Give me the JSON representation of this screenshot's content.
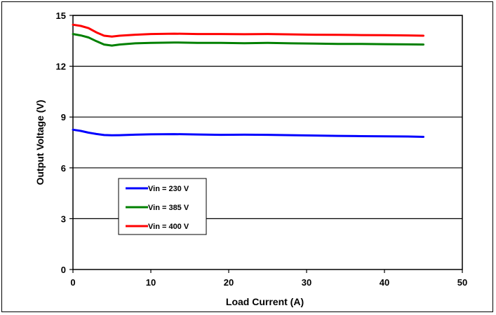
{
  "chart_data": {
    "type": "line",
    "title": "",
    "xlabel": "Load Current (A)",
    "ylabel": "Output Voltage (V)",
    "xlim": [
      0,
      50
    ],
    "ylim": [
      0,
      15
    ],
    "xticks": [
      0,
      10,
      20,
      30,
      40,
      50
    ],
    "yticks": [
      0,
      3,
      6,
      9,
      12,
      15
    ],
    "grid": "horizontal",
    "legend_position": "lower-left",
    "series": [
      {
        "name": "Vin = 230 V",
        "color": "#0000ff",
        "x": [
          0,
          1,
          2,
          3,
          4,
          5,
          6,
          8,
          10,
          13,
          16,
          19,
          22,
          25,
          28,
          31,
          34,
          37,
          40,
          43,
          45
        ],
        "values": [
          8.25,
          8.18,
          8.08,
          8.0,
          7.94,
          7.92,
          7.93,
          7.96,
          7.98,
          7.99,
          7.97,
          7.95,
          7.96,
          7.95,
          7.93,
          7.91,
          7.89,
          7.87,
          7.86,
          7.85,
          7.83
        ]
      },
      {
        "name": "Vin = 385 V",
        "color": "#008000",
        "x": [
          0,
          1,
          2,
          3,
          4,
          5,
          6,
          8,
          10,
          13,
          16,
          19,
          22,
          25,
          28,
          31,
          34,
          37,
          40,
          43,
          45
        ],
        "values": [
          13.9,
          13.82,
          13.7,
          13.48,
          13.28,
          13.22,
          13.28,
          13.35,
          13.38,
          13.4,
          13.38,
          13.38,
          13.36,
          13.38,
          13.35,
          13.34,
          13.32,
          13.32,
          13.3,
          13.29,
          13.28
        ]
      },
      {
        "name": "Vin = 400 V",
        "color": "#ff0000",
        "x": [
          0,
          1,
          2,
          3,
          4,
          5,
          6,
          8,
          10,
          13,
          16,
          19,
          22,
          25,
          28,
          31,
          34,
          37,
          40,
          43,
          45
        ],
        "values": [
          14.45,
          14.38,
          14.25,
          14.0,
          13.8,
          13.75,
          13.8,
          13.86,
          13.9,
          13.92,
          13.9,
          13.9,
          13.89,
          13.9,
          13.88,
          13.86,
          13.85,
          13.84,
          13.83,
          13.82,
          13.8
        ]
      }
    ]
  }
}
